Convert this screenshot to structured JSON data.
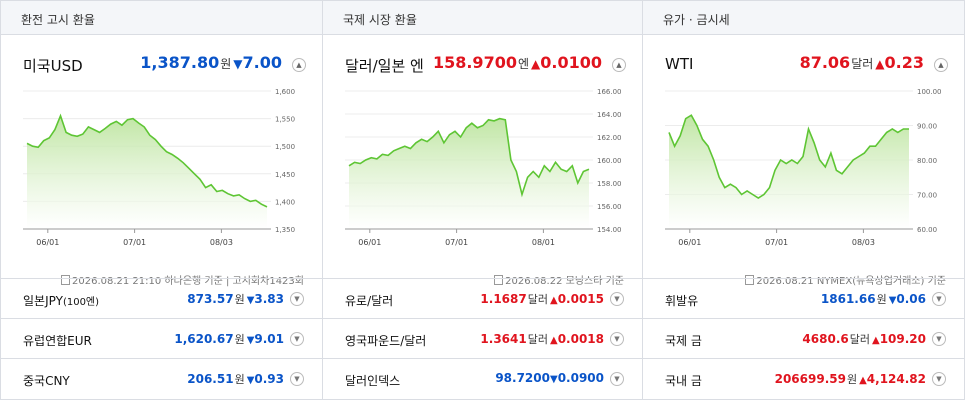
{
  "panels": [
    {
      "header": "환전 고시 환율",
      "name": "미국USD",
      "value": "1,387.80",
      "unit": "원",
      "direction": "down",
      "arrow": "▼",
      "change": "7.00",
      "toggle_icon": "chevron-up-icon",
      "source": "2026.08.21 21:10 하나은행 기준 | 고시회차1423회",
      "rows": [
        {
          "name": "일본JPY",
          "suffix": "(100엔)",
          "value": "873.57",
          "unit": "원",
          "direction": "down",
          "arrow": "▼",
          "change": "3.83"
        },
        {
          "name": "유럽연합EUR",
          "suffix": "",
          "value": "1,620.67",
          "unit": "원",
          "direction": "down",
          "arrow": "▼",
          "change": "9.01"
        },
        {
          "name": "중국CNY",
          "suffix": "",
          "value": "206.51",
          "unit": "원",
          "direction": "down",
          "arrow": "▼",
          "change": "0.93"
        }
      ]
    },
    {
      "header": "국제 시장 환율",
      "name": "달러/일본 엔",
      "value": "158.9700",
      "unit": "엔",
      "direction": "up",
      "arrow": "▲",
      "change": "0.0100",
      "toggle_icon": "chevron-up-icon",
      "source": "2026.08.22 모닝스타 기준",
      "rows": [
        {
          "name": "유로/달러",
          "suffix": "",
          "value": "1.1687",
          "unit": "달러",
          "direction": "up",
          "arrow": "▲",
          "change": "0.0015"
        },
        {
          "name": "영국파운드/달러",
          "suffix": "",
          "value": "1.3641",
          "unit": "달러",
          "direction": "up",
          "arrow": "▲",
          "change": "0.0018"
        },
        {
          "name": "달러인덱스",
          "suffix": "",
          "value": "98.7200",
          "unit": "",
          "direction": "down",
          "arrow": "▼",
          "change": "0.0900"
        }
      ]
    },
    {
      "header": "유가 · 금시세",
      "name": "WTI",
      "value": "87.06",
      "unit": "달러",
      "direction": "up",
      "arrow": "▲",
      "change": "0.23",
      "toggle_icon": "chevron-up-icon",
      "source": "2026.08.21 NYMEX(뉴욕상업거래소) 기준",
      "rows": [
        {
          "name": "휘발유",
          "suffix": "",
          "value": "1861.66",
          "unit": "원",
          "direction": "down",
          "arrow": "▼",
          "change": "0.06"
        },
        {
          "name": "국제 금",
          "suffix": "",
          "value": "4680.6",
          "unit": "달러",
          "direction": "up",
          "arrow": "▲",
          "change": "109.20"
        },
        {
          "name": "국내 금",
          "suffix": "",
          "value": "206699.59",
          "unit": "원",
          "direction": "up",
          "arrow": "▲",
          "change": "4,124.82"
        }
      ]
    }
  ],
  "chart_data": [
    {
      "type": "area",
      "x_ticks": [
        "06/01",
        "07/01",
        "08/03"
      ],
      "y_ticks": [
        "1,600",
        "1,550",
        "1,500",
        "1,450",
        "1,400",
        "1,350"
      ],
      "ylim": [
        1350,
        1600
      ],
      "grid": true,
      "values": [
        1505,
        1500,
        1498,
        1510,
        1515,
        1530,
        1555,
        1525,
        1520,
        1518,
        1522,
        1535,
        1530,
        1525,
        1532,
        1540,
        1545,
        1538,
        1548,
        1550,
        1542,
        1535,
        1520,
        1512,
        1500,
        1490,
        1485,
        1478,
        1470,
        1460,
        1450,
        1440,
        1425,
        1430,
        1418,
        1420,
        1414,
        1410,
        1412,
        1405,
        1400,
        1402,
        1395,
        1390
      ]
    },
    {
      "type": "area",
      "x_ticks": [
        "06/01",
        "07/01",
        "08/01"
      ],
      "y_ticks": [
        "166.00",
        "164.00",
        "162.00",
        "160.00",
        "158.00",
        "156.00",
        "154.00"
      ],
      "ylim": [
        154,
        166
      ],
      "grid": true,
      "values": [
        159.5,
        159.8,
        159.7,
        160.0,
        160.2,
        160.1,
        160.5,
        160.4,
        160.8,
        161.0,
        161.2,
        161.0,
        161.5,
        161.8,
        161.6,
        162.0,
        162.5,
        161.5,
        162.2,
        162.5,
        162.0,
        162.8,
        163.2,
        162.8,
        163.0,
        163.5,
        163.4,
        163.6,
        163.5,
        160.0,
        159.0,
        157.0,
        158.5,
        159.0,
        158.5,
        159.5,
        159.0,
        159.8,
        159.2,
        159.0,
        159.5,
        158.0,
        159.0,
        159.2
      ]
    },
    {
      "type": "area",
      "x_ticks": [
        "06/01",
        "07/01",
        "08/03"
      ],
      "y_ticks": [
        "100.00",
        "90.00",
        "80.00",
        "70.00",
        "60.00"
      ],
      "ylim": [
        60,
        100
      ],
      "grid": true,
      "values": [
        88,
        84,
        87,
        92,
        93,
        90,
        86,
        84,
        80,
        75,
        72,
        73,
        72,
        70,
        71,
        70,
        69,
        70,
        72,
        77,
        80,
        79,
        80,
        79,
        81,
        89,
        85,
        80,
        78,
        82,
        77,
        76,
        78,
        80,
        81,
        82,
        84,
        84,
        86,
        88,
        89,
        88,
        89,
        89
      ]
    }
  ]
}
